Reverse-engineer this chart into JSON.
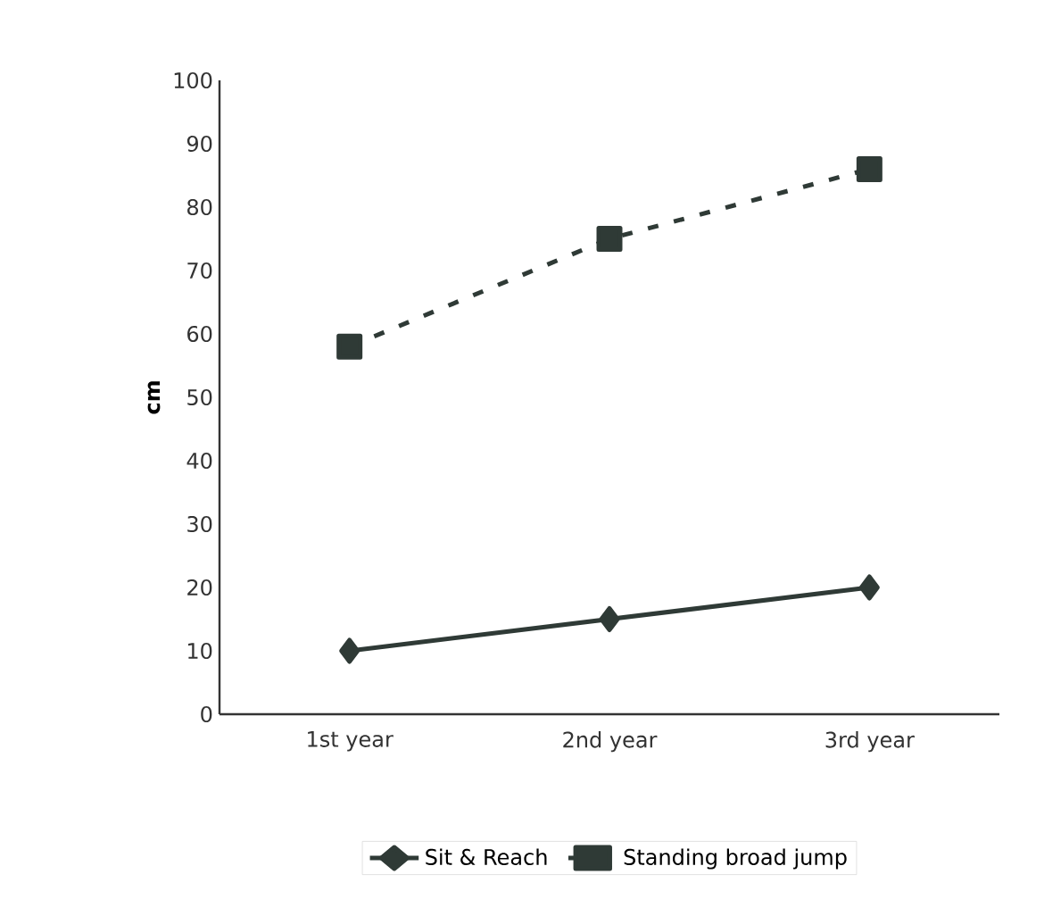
{
  "chart_data": {
    "type": "line",
    "ylabel": "cm",
    "categories": [
      "1st year",
      "2nd year",
      "3rd year"
    ],
    "series": [
      {
        "name": "Sit & Reach",
        "color": "#2f3a36",
        "values": [
          10,
          15,
          20
        ],
        "marker": "diamond",
        "line_style": "solid"
      },
      {
        "name": "Standing broad jump",
        "color": "#2f3a36",
        "values": [
          58,
          75,
          86
        ],
        "marker": "square",
        "line_style": "dashed"
      }
    ],
    "ylim": [
      0,
      100
    ],
    "yticks": [
      0,
      10,
      20,
      30,
      40,
      50,
      60,
      70,
      80,
      90,
      100
    ],
    "grid": false,
    "legend": "bottom"
  }
}
